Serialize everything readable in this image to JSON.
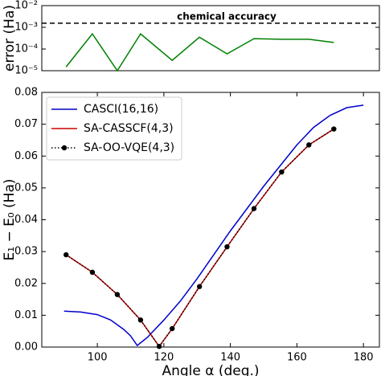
{
  "chart_data": [
    {
      "type": "line",
      "ylabel": "error (Ha)",
      "log_y": true,
      "xlim": [
        83.3,
        184.8
      ],
      "ylim": [
        1e-05,
        0.01
      ],
      "yticks": [
        {
          "value": 1e-05,
          "label": "10⁻⁵"
        },
        {
          "value": 0.0001,
          "label": "10⁻⁴"
        },
        {
          "value": 0.001,
          "label": "10⁻³"
        },
        {
          "value": 0.01,
          "label": "10⁻²"
        }
      ],
      "series": [
        {
          "color": "#008000",
          "x": [
            90.6,
            98.5,
            106,
            113,
            122.5,
            130.7,
            139,
            147.1,
            155.4,
            163.6,
            171.1
          ],
          "values": [
            1.5e-05,
            0.0005,
            1e-05,
            0.0005,
            3e-05,
            0.00035,
            6e-05,
            0.0003,
            0.00028,
            0.00028,
            0.0002
          ]
        }
      ],
      "hline": {
        "value": 0.00155,
        "label": "chemical accuracy"
      }
    },
    {
      "type": "line",
      "xlabel": "Angle α (deg.)",
      "ylabel": "E₁ − E₀ (Ha)",
      "xlim": [
        83.3,
        184.8
      ],
      "xticks": [
        100,
        120,
        140,
        160,
        180
      ],
      "ylim": [
        0,
        0.08
      ],
      "yticks": [
        {
          "value": 0,
          "label": "0.00"
        },
        {
          "value": 0.01,
          "label": "0.01"
        },
        {
          "value": 0.02,
          "label": "0.02"
        },
        {
          "value": 0.03,
          "label": "0.03"
        },
        {
          "value": 0.04,
          "label": "0.04"
        },
        {
          "value": 0.05,
          "label": "0.05"
        },
        {
          "value": 0.06,
          "label": "0.06"
        },
        {
          "value": 0.07,
          "label": "0.07"
        },
        {
          "value": 0.08,
          "label": "0.08"
        }
      ],
      "legend": "upper left",
      "series": [
        {
          "name": "CASCI(16,16)",
          "color": "#0000cc",
          "linestyle": "solid",
          "x": [
            90,
            95,
            100,
            104,
            108,
            110,
            112,
            115,
            120,
            125,
            130,
            135,
            140,
            145,
            150,
            155,
            160,
            165,
            170,
            175,
            180
          ],
          "values": [
            0.0113,
            0.011,
            0.0102,
            0.0085,
            0.0055,
            0.0035,
            0.0005,
            0.003,
            0.0085,
            0.0145,
            0.0215,
            0.029,
            0.0365,
            0.0435,
            0.0505,
            0.057,
            0.0635,
            0.069,
            0.0728,
            0.0752,
            0.076
          ]
        },
        {
          "name": "SA-CASSCF(4,3)",
          "color": "#cc0000",
          "linestyle": "solid",
          "x": [
            90.6,
            98.5,
            106,
            113,
            118.6,
            122.5,
            130.7,
            139,
            147.1,
            155.4,
            163.6,
            171.1
          ],
          "values": [
            0.029,
            0.0235,
            0.0165,
            0.0085,
            0.0002,
            0.0058,
            0.019,
            0.0315,
            0.0435,
            0.055,
            0.0635,
            0.0685
          ]
        },
        {
          "name": "SA-OO-VQE(4,3)",
          "color": "#000000",
          "linestyle": "dotted",
          "marker": "o",
          "x": [
            90.6,
            98.5,
            106,
            113,
            118.6,
            122.5,
            130.7,
            139,
            147.1,
            155.4,
            163.6,
            171.1
          ],
          "values": [
            0.029,
            0.0235,
            0.0165,
            0.0085,
            0.0002,
            0.0058,
            0.019,
            0.0315,
            0.0435,
            0.055,
            0.0635,
            0.0685
          ]
        }
      ]
    }
  ]
}
